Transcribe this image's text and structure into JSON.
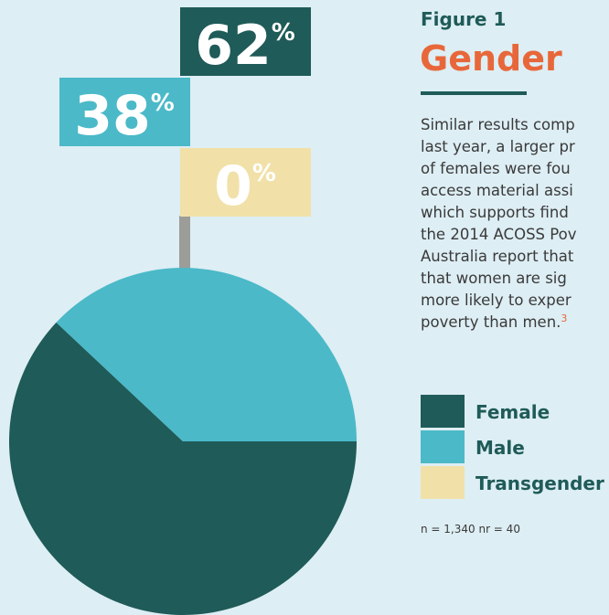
{
  "chart_data": {
    "type": "pie",
    "subtitle": "Figure 1",
    "title": "Gender",
    "categories": [
      "Female",
      "Male",
      "Transgender"
    ],
    "values": [
      62,
      38,
      0
    ],
    "value_labels": [
      "62%",
      "38%",
      "0%"
    ],
    "colors": [
      "#1f5b58",
      "#4bb9c8",
      "#f1e1a9"
    ],
    "text_lines": [
      "Similar results comp",
      "last year, a larger pr",
      "of females were fou",
      "access material assi",
      "which supports find",
      "the 2014 ACOSS Pov",
      "Australia report that",
      "that women are sig",
      "more likely to exper",
      "poverty than men."
    ],
    "footnote_ref": "3",
    "note": "n = 1,340  nr = 40"
  }
}
